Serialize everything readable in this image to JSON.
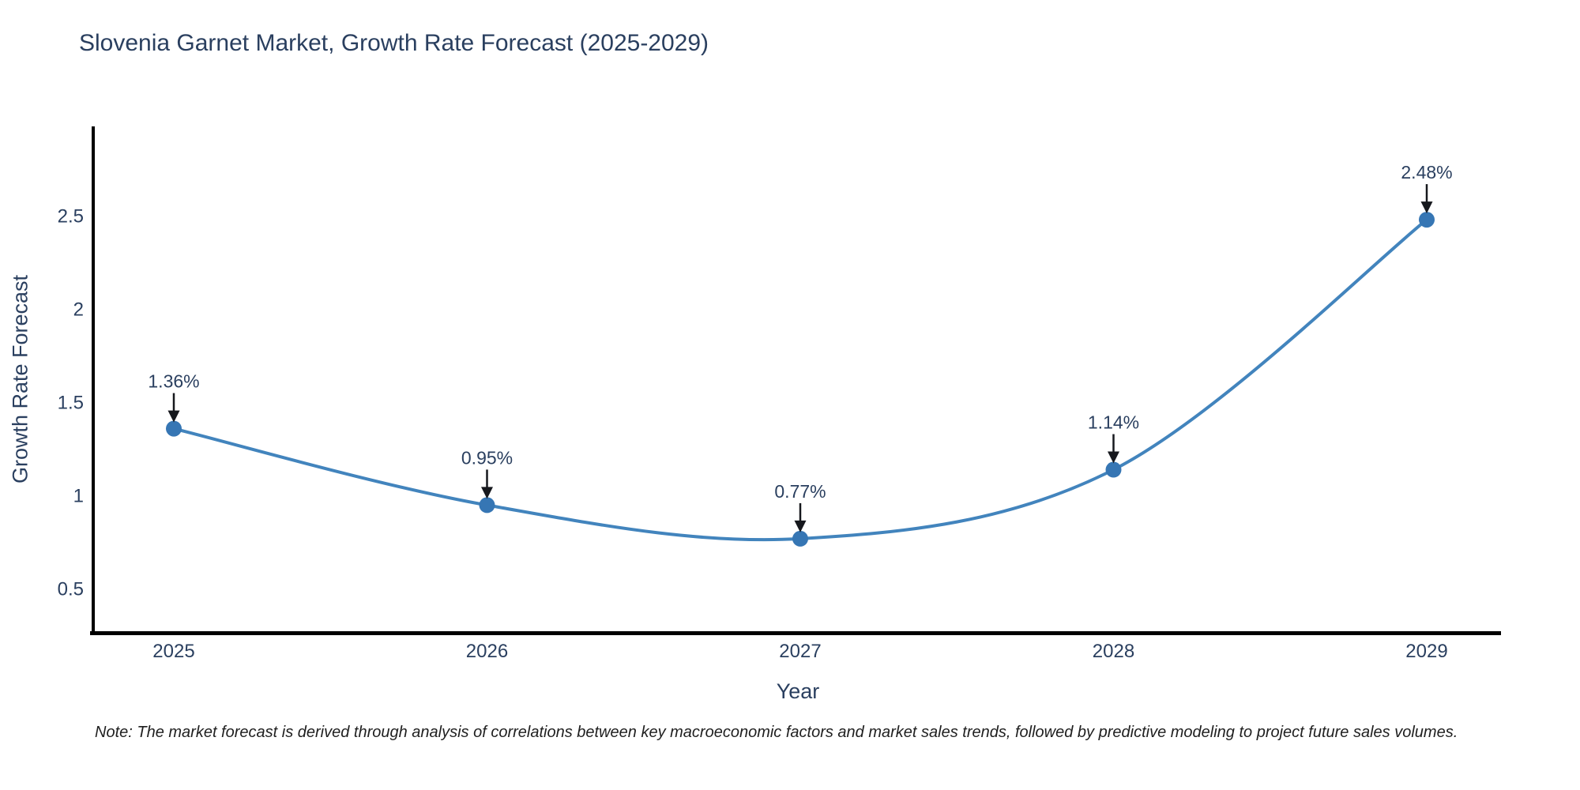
{
  "note": "Note: The market forecast is derived through analysis of correlations between key macroeconomic factors and market sales trends, followed by predictive modeling to project future sales volumes.",
  "colors": {
    "title_text": "#2a3f5f",
    "axis_line": "#000000",
    "line": "#4284bd",
    "marker": "#3676b4",
    "annotation_arrow": "#16181d",
    "note_text": "#1f1f1f",
    "background": "#ffffff"
  },
  "chart_data": {
    "type": "line",
    "title": "Slovenia Garnet Market, Growth Rate Forecast (2025-2029)",
    "xlabel": "Year",
    "ylabel": "Growth Rate Forecast",
    "categories": [
      "2025",
      "2026",
      "2027",
      "2028",
      "2029"
    ],
    "values": [
      1.36,
      0.95,
      0.77,
      1.14,
      2.48
    ],
    "point_labels": [
      "1.36%",
      "0.95%",
      "0.77%",
      "1.14%",
      "2.48%"
    ],
    "yticks": [
      0.5,
      1,
      1.5,
      2,
      2.5
    ],
    "ylim": [
      0.27,
      2.98
    ],
    "line_shape": "spline",
    "grid": false,
    "legend": "none"
  }
}
